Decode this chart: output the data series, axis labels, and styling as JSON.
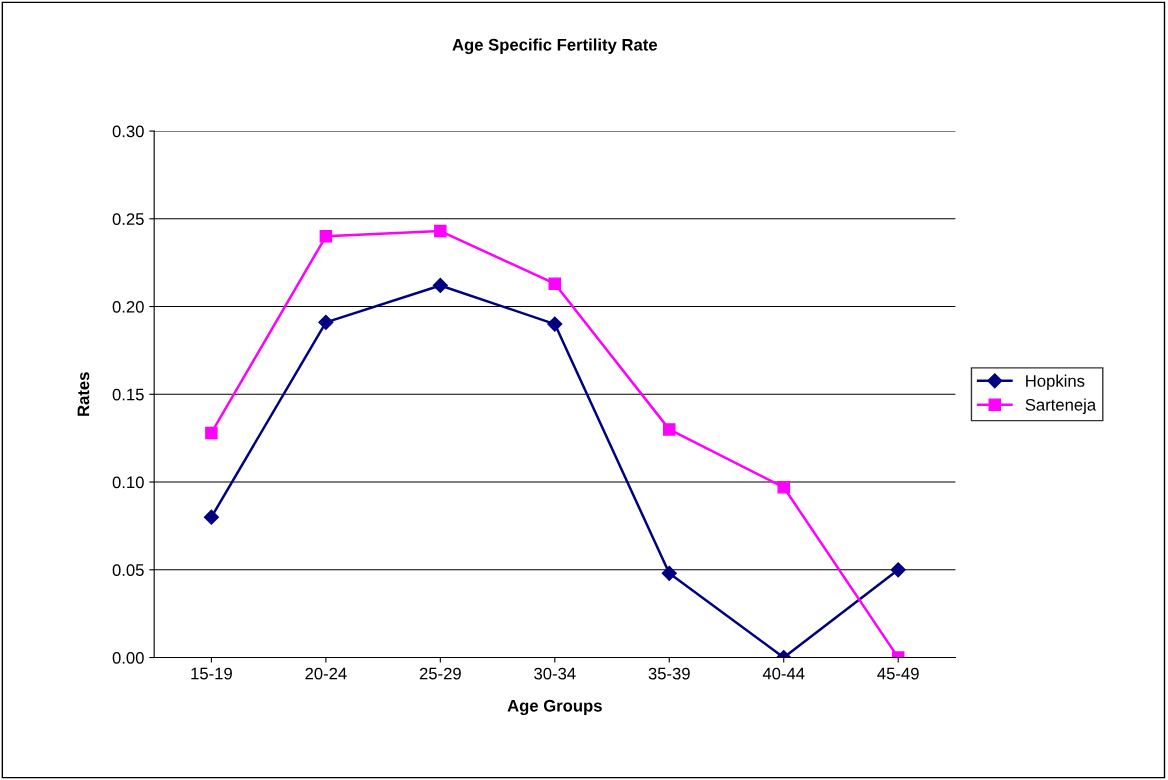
{
  "chart_data": {
    "type": "line",
    "title": "Age Specific Fertility Rate",
    "xlabel": "Age Groups",
    "ylabel": "Rates",
    "categories": [
      "15-19",
      "20-24",
      "25-29",
      "30-34",
      "35-39",
      "40-44",
      "45-49"
    ],
    "series": [
      {
        "name": "Hopkins",
        "color": "#000080",
        "marker": "diamond",
        "values": [
          0.08,
          0.191,
          0.212,
          0.19,
          0.048,
          0.0,
          0.05
        ]
      },
      {
        "name": "Sarteneja",
        "color": "#ff00ff",
        "marker": "square",
        "values": [
          0.128,
          0.24,
          0.243,
          0.213,
          0.13,
          0.097,
          0.0
        ]
      }
    ],
    "ylim": [
      0,
      0.3
    ],
    "yticks": [
      {
        "value": 0,
        "label": "0.00"
      },
      {
        "value": 0.05,
        "label": "0.05"
      },
      {
        "value": 0.1,
        "label": "0.10"
      },
      {
        "value": 0.15,
        "label": "0.15"
      },
      {
        "value": 0.2,
        "label": "0.20"
      },
      {
        "value": 0.25,
        "label": "0.25"
      },
      {
        "value": 0.3,
        "label": "0.30"
      }
    ],
    "grid": "y",
    "legend": "right",
    "line_style": "solid"
  }
}
